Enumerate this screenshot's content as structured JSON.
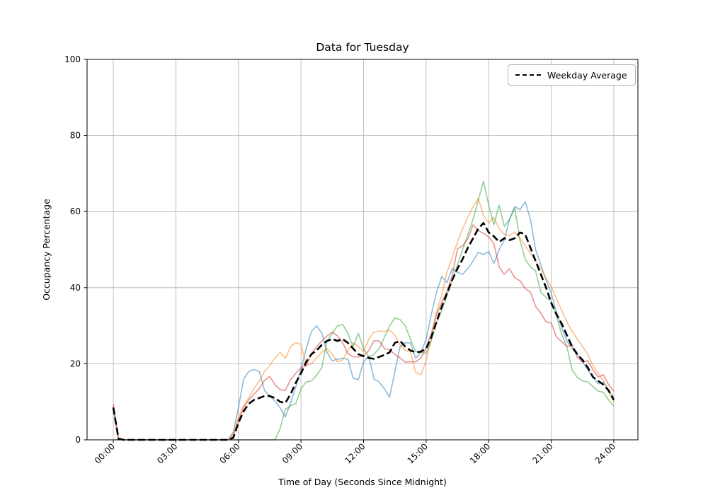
{
  "figure": {
    "background": "#ffffff"
  },
  "axes": {
    "title": "Data for Tuesday",
    "xlabel": "Time of Day (Seconds Since Midnight)",
    "ylabel": "Occupancy Percentage",
    "x_tick_labels": [
      "00:00",
      "03:00",
      "06:00",
      "09:00",
      "12:00",
      "15:00",
      "18:00",
      "21:00",
      "24:00"
    ],
    "x_tick_hours": [
      0,
      3,
      6,
      9,
      12,
      15,
      18,
      21,
      24
    ],
    "y_tick_labels": [
      "0",
      "20",
      "40",
      "60",
      "80",
      "100"
    ],
    "y_ticks": [
      0,
      20,
      40,
      60,
      80,
      100
    ],
    "ylim": [
      0,
      100
    ],
    "xlim_hours": [
      0,
      24
    ],
    "grid": true,
    "grid_color": "#b0b0b0",
    "spine_color": "#000000"
  },
  "legend": {
    "label": "Weekday Average",
    "position": "upper-right",
    "line_style": "black-dashed"
  },
  "chart_data": {
    "type": "line",
    "title": "Data for Tuesday",
    "xlabel": "Time of Day (Seconds Since Midnight)",
    "ylabel": "Occupancy Percentage",
    "ylim": [
      0,
      100
    ],
    "x_unit": "hours",
    "x_start": 0,
    "x_step": 0.25,
    "x_step_seconds": 900,
    "n_points": 97,
    "series": [
      {
        "name": "individual-day-1",
        "color": "#1f77b4",
        "alpha": 0.5,
        "width": 1.6,
        "dashed": false,
        "values": [
          7.5,
          0.2,
          0,
          0,
          0,
          0,
          0,
          0,
          0,
          0,
          0,
          0,
          0,
          0,
          0,
          0,
          0,
          0,
          0,
          0,
          0,
          0,
          0,
          2,
          8.5,
          16,
          18,
          18.5,
          18,
          13,
          11.5,
          10.2,
          8.4,
          6,
          9.7,
          14,
          18.5,
          24,
          28.5,
          30,
          28,
          23,
          20.8,
          21.2,
          21.4,
          21.2,
          16.2,
          15.8,
          20.5,
          22,
          16,
          15.2,
          13.4,
          11.2,
          18,
          24.5,
          25.5,
          25.5,
          21.4,
          23,
          26.4,
          33,
          38.8,
          43,
          41.3,
          45,
          44,
          43.5,
          45,
          47,
          49.3,
          48.7,
          49.5,
          46.3,
          50,
          52.5,
          58,
          61.3,
          60.5,
          62.6,
          58,
          50,
          46,
          42,
          38.6,
          33.5,
          29.5,
          26,
          24,
          22.5,
          20.5,
          18.4,
          16.5,
          14.7,
          15.2,
          13,
          11.2
        ]
      },
      {
        "name": "individual-day-2",
        "color": "#ff7f0e",
        "alpha": 0.5,
        "width": 1.6,
        "dashed": false,
        "values": [
          8.8,
          0.3,
          0,
          0,
          0,
          0,
          0,
          0,
          0,
          0,
          0,
          0,
          0,
          0,
          0,
          0,
          0,
          0,
          0,
          0,
          0,
          0,
          0,
          1.5,
          6,
          9,
          11,
          13.5,
          15.5,
          18,
          19.5,
          21.5,
          23,
          21.4,
          24.5,
          25.5,
          25.1,
          19.5,
          20,
          21.5,
          23,
          24,
          22.5,
          20.5,
          21,
          23.5,
          25.5,
          24.5,
          23.2,
          26.5,
          28.3,
          28.6,
          28.5,
          28.8,
          27.5,
          24.9,
          23.5,
          23.2,
          17.7,
          17.1,
          20.8,
          27,
          33.8,
          38,
          44,
          48,
          52,
          55.5,
          58.5,
          61.3,
          63.5,
          59,
          57,
          58.5,
          55.5,
          54,
          53.7,
          54.6,
          53,
          51,
          49,
          47,
          45,
          42.5,
          40.3,
          37,
          34,
          31,
          28.5,
          26.5,
          24.5,
          22.5,
          19.5,
          17.5,
          15.6,
          12.5,
          10
        ]
      },
      {
        "name": "individual-day-3",
        "color": "#2ca02c",
        "alpha": 0.5,
        "width": 1.6,
        "dashed": false,
        "values": [
          0,
          0,
          0,
          0,
          0,
          0,
          0,
          0,
          0,
          0,
          0,
          0,
          0,
          0,
          0,
          0,
          0,
          0,
          0,
          0,
          0,
          0,
          0,
          0,
          0,
          0,
          0,
          0,
          0,
          0,
          0,
          0,
          3,
          8,
          9,
          9.5,
          13.4,
          15.2,
          15.5,
          17,
          19,
          26,
          28,
          30,
          30.3,
          28,
          24.5,
          28,
          24,
          21.8,
          22.5,
          24,
          27,
          30,
          32,
          31.6,
          30,
          26.4,
          23.2,
          23,
          22.7,
          26,
          31,
          34,
          38,
          42,
          46,
          50,
          54,
          58,
          63,
          68,
          61.7,
          56.5,
          61.7,
          56.1,
          58,
          61,
          52.4,
          47.4,
          45.5,
          44.4,
          38.8,
          37.5,
          36.5,
          32.5,
          27.7,
          24.5,
          18.4,
          16.4,
          15.5,
          15.2,
          14,
          12.8,
          12.5,
          10.5,
          8.9
        ]
      },
      {
        "name": "individual-day-4",
        "color": "#d62728",
        "alpha": 0.5,
        "width": 1.6,
        "dashed": false,
        "values": [
          9.5,
          0.4,
          0,
          0,
          0,
          0,
          0,
          0,
          0,
          0,
          0,
          0,
          0,
          0,
          0,
          0,
          0,
          0,
          0,
          0,
          0,
          0,
          0,
          1,
          5,
          8.5,
          10.5,
          12,
          13.5,
          15.6,
          16.7,
          14.5,
          13.2,
          13,
          15.8,
          17.5,
          19,
          19.5,
          22.7,
          24.5,
          26,
          27.3,
          28.3,
          27.3,
          25.5,
          22.7,
          21.8,
          21.8,
          22,
          23.5,
          26,
          26,
          24,
          23.6,
          22.5,
          21.5,
          20.4,
          20.5,
          20.5,
          21.5,
          24.2,
          28,
          32.9,
          36.2,
          39,
          43.1,
          50.2,
          51,
          52.8,
          56.5,
          55,
          54.3,
          53.3,
          51.5,
          45.5,
          43.5,
          45,
          42.6,
          41.8,
          39.8,
          38.8,
          35.1,
          33.3,
          31,
          30.7,
          27,
          25.8,
          24.5,
          24.9,
          21.7,
          20.4,
          20.8,
          18.4,
          16.5,
          17.1,
          14.5,
          12.8
        ]
      },
      {
        "name": "Weekday Average",
        "color": "#000000",
        "alpha": 1,
        "width": 2.6,
        "dashed": true,
        "values": [
          8.5,
          0.3,
          0,
          0,
          0,
          0,
          0,
          0,
          0,
          0,
          0,
          0,
          0,
          0,
          0,
          0,
          0,
          0,
          0,
          0,
          0,
          0,
          0,
          0.5,
          4.5,
          7.5,
          9.5,
          10.5,
          11,
          11.5,
          11.5,
          11,
          10,
          9.7,
          12,
          15,
          17.5,
          20.5,
          22.5,
          23.5,
          25,
          26,
          26.5,
          26,
          26.5,
          25.5,
          24,
          22.5,
          22,
          21.5,
          21.3,
          21.8,
          22.3,
          23,
          25.5,
          26,
          24.5,
          23.5,
          23,
          23.2,
          24,
          27,
          31,
          35,
          38.5,
          42,
          45,
          47.5,
          50.5,
          53,
          55.5,
          57,
          54.5,
          53.5,
          52,
          53,
          52.5,
          53,
          54.5,
          54,
          50.5,
          47,
          43.5,
          40,
          36,
          33,
          30.5,
          27.5,
          24.5,
          22.5,
          21,
          19,
          16.5,
          15.5,
          14.5,
          13,
          10.5
        ]
      }
    ]
  }
}
